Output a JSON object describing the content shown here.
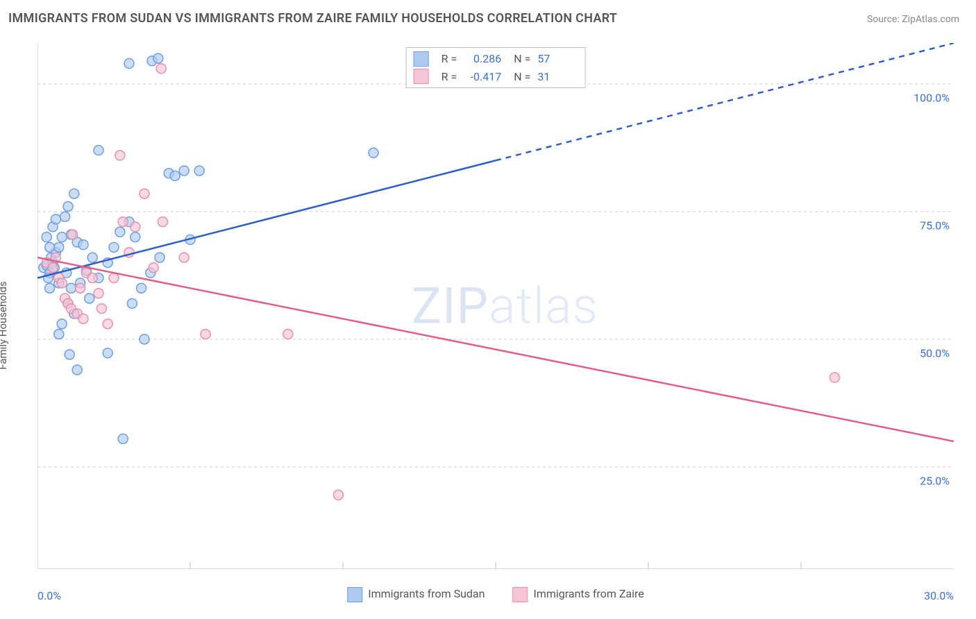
{
  "title": "IMMIGRANTS FROM SUDAN VS IMMIGRANTS FROM ZAIRE FAMILY HOUSEHOLDS CORRELATION CHART",
  "source": "Source: ZipAtlas.com",
  "watermark_bold": "ZIP",
  "watermark_thin": "atlas",
  "chart": {
    "type": "scatter",
    "ylabel": "Family Households",
    "xlim": [
      0,
      30
    ],
    "ylim": [
      5,
      108
    ],
    "x_ticks": [
      0,
      30
    ],
    "x_tick_labels": [
      "0.0%",
      "30.0%"
    ],
    "x_minor_ticks": [
      5,
      10,
      15,
      20,
      25
    ],
    "y_gridlines": [
      25,
      50,
      75,
      100
    ],
    "y_gridline_labels": [
      "25.0%",
      "50.0%",
      "75.0%",
      "100.0%"
    ],
    "background_color": "#ffffff",
    "grid_color": "#d0d0d0",
    "axis_color": "#bdbdbd",
    "label_color": "#3a6fd8",
    "marker_radius": 7,
    "marker_stroke_width": 1.5,
    "line_width": 2.5,
    "series": [
      {
        "name": "Immigrants from Sudan",
        "fill": "#aecbef",
        "stroke": "#6f9fe0",
        "line_color": "#2f5fc4",
        "R_label": "R =",
        "R": "0.286",
        "N_label": "N =",
        "N": "57",
        "trend": {
          "x1": 0,
          "y1": 62,
          "x2": 30,
          "y2": 108,
          "solid_until_x": 15
        },
        "points": [
          [
            0.2,
            64
          ],
          [
            0.3,
            64.5
          ],
          [
            0.4,
            63
          ],
          [
            0.5,
            65
          ],
          [
            0.45,
            66
          ],
          [
            0.6,
            67
          ],
          [
            0.7,
            68
          ],
          [
            0.8,
            70
          ],
          [
            0.5,
            72
          ],
          [
            0.6,
            73.5
          ],
          [
            0.9,
            74
          ],
          [
            1.0,
            76
          ],
          [
            1.2,
            78.5
          ],
          [
            1.1,
            70.5
          ],
          [
            1.3,
            69
          ],
          [
            1.5,
            68.5
          ],
          [
            1.4,
            61
          ],
          [
            1.6,
            63.5
          ],
          [
            1.8,
            66
          ],
          [
            1.7,
            58
          ],
          [
            1.0,
            57
          ],
          [
            1.2,
            55
          ],
          [
            0.8,
            53
          ],
          [
            0.7,
            51
          ],
          [
            1.05,
            47
          ],
          [
            2.3,
            47.3
          ],
          [
            1.3,
            44
          ],
          [
            2.0,
            62
          ],
          [
            2.3,
            65
          ],
          [
            2.5,
            68
          ],
          [
            2.7,
            71
          ],
          [
            3.0,
            73
          ],
          [
            3.2,
            70
          ],
          [
            3.4,
            60
          ],
          [
            3.7,
            63
          ],
          [
            3.1,
            57
          ],
          [
            3.5,
            50
          ],
          [
            4.0,
            66
          ],
          [
            4.3,
            82.5
          ],
          [
            4.5,
            82
          ],
          [
            4.8,
            83
          ],
          [
            5.3,
            83
          ],
          [
            5.0,
            69.5
          ],
          [
            2.0,
            87
          ],
          [
            2.8,
            30.5
          ],
          [
            3.0,
            104
          ],
          [
            3.75,
            104.5
          ],
          [
            11.0,
            86.5
          ],
          [
            3.95,
            105
          ],
          [
            1.1,
            60
          ],
          [
            0.4,
            60
          ],
          [
            0.35,
            62
          ],
          [
            0.55,
            64
          ],
          [
            0.7,
            61
          ],
          [
            0.95,
            63
          ],
          [
            0.4,
            68
          ],
          [
            0.3,
            70
          ]
        ]
      },
      {
        "name": "Immigrants from Zaire",
        "fill": "#f6c5d4",
        "stroke": "#e98fab",
        "line_color": "#e05f87",
        "R_label": "R =",
        "R": "-0.417",
        "N_label": "N =",
        "N": "31",
        "trend": {
          "x1": 0,
          "y1": 66,
          "x2": 30,
          "y2": 30,
          "solid_until_x": 30
        },
        "points": [
          [
            0.3,
            65
          ],
          [
            0.5,
            64
          ],
          [
            0.6,
            66
          ],
          [
            0.7,
            62
          ],
          [
            0.8,
            61
          ],
          [
            0.9,
            58
          ],
          [
            1.0,
            57
          ],
          [
            1.1,
            56
          ],
          [
            1.3,
            55
          ],
          [
            1.5,
            54
          ],
          [
            1.4,
            60
          ],
          [
            1.6,
            63
          ],
          [
            1.8,
            62
          ],
          [
            2.0,
            59
          ],
          [
            2.1,
            56
          ],
          [
            2.3,
            53
          ],
          [
            2.5,
            62
          ],
          [
            2.8,
            73
          ],
          [
            3.0,
            67
          ],
          [
            3.2,
            72
          ],
          [
            3.5,
            78.5
          ],
          [
            3.8,
            64
          ],
          [
            4.1,
            73
          ],
          [
            4.8,
            66
          ],
          [
            5.5,
            51
          ],
          [
            2.7,
            86
          ],
          [
            4.05,
            103
          ],
          [
            8.2,
            51
          ],
          [
            9.85,
            19.5
          ],
          [
            26.1,
            42.5
          ],
          [
            1.15,
            70.5
          ]
        ]
      }
    ]
  },
  "bottom_legend": [
    {
      "label": "Immigrants from Sudan",
      "fill": "#aecbef",
      "stroke": "#6f9fe0"
    },
    {
      "label": "Immigrants from Zaire",
      "fill": "#f6c5d4",
      "stroke": "#e98fab"
    }
  ]
}
